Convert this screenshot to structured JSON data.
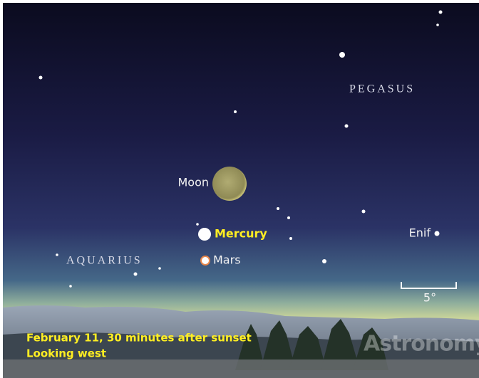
{
  "labels": {
    "constellation_top": "PEGASUS",
    "constellation_left": "AQUARIUS",
    "moon": "Moon",
    "mercury": "Mercury",
    "mars": "Mars",
    "enif": "Enif",
    "scale": "5°"
  },
  "caption": {
    "line1": "February 11, 30 minutes after sunset",
    "line2": "Looking west"
  },
  "watermark": "Astronomy"
}
